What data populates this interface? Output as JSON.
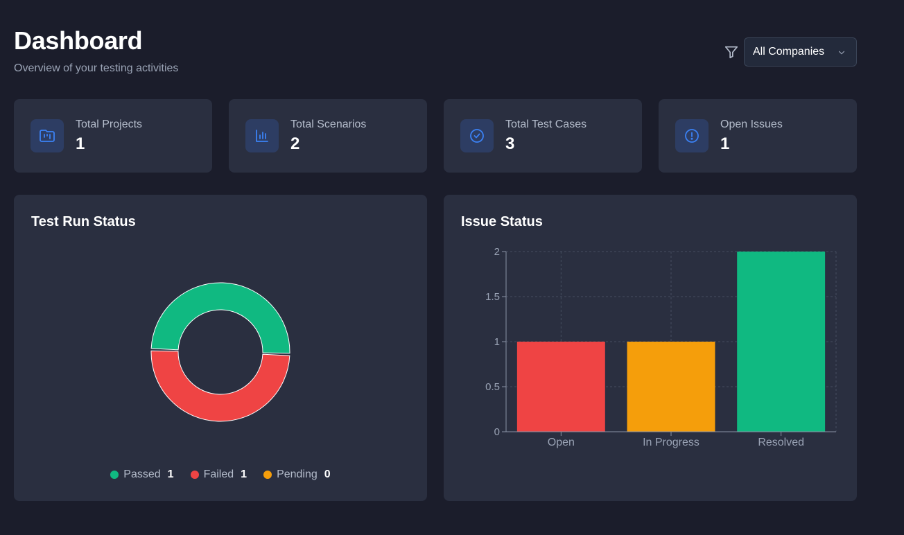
{
  "header": {
    "title": "Dashboard",
    "subtitle": "Overview of your testing activities",
    "filter_icon": "filter-icon",
    "company_select": {
      "selected": "All Companies"
    }
  },
  "stats": [
    {
      "label": "Total Projects",
      "value": "1",
      "icon": "folder-kanban-icon"
    },
    {
      "label": "Total Scenarios",
      "value": "2",
      "icon": "bar-chart-icon"
    },
    {
      "label": "Total Test Cases",
      "value": "3",
      "icon": "check-circle-icon"
    },
    {
      "label": "Open Issues",
      "value": "1",
      "icon": "alert-circle-icon"
    }
  ],
  "test_run_panel": {
    "title": "Test Run Status",
    "legend": [
      {
        "label": "Passed",
        "value": "1",
        "color": "#10b981"
      },
      {
        "label": "Failed",
        "value": "1",
        "color": "#ef4444"
      },
      {
        "label": "Pending",
        "value": "0",
        "color": "#f59e0b"
      }
    ]
  },
  "issue_panel": {
    "title": "Issue Status"
  },
  "colors": {
    "accent": "#3b82f6",
    "passed": "#10b981",
    "failed": "#ef4444",
    "pending": "#f59e0b"
  },
  "chart_data": [
    {
      "type": "pie",
      "title": "Test Run Status",
      "categories": [
        "Passed",
        "Failed",
        "Pending"
      ],
      "values": [
        1,
        1,
        0
      ],
      "colors": [
        "#10b981",
        "#ef4444",
        "#f59e0b"
      ]
    },
    {
      "type": "bar",
      "title": "Issue Status",
      "categories": [
        "Open",
        "In Progress",
        "Resolved"
      ],
      "values": [
        1,
        1,
        2
      ],
      "colors": [
        "#ef4444",
        "#f59e0b",
        "#10b981"
      ],
      "ylim": [
        0,
        2
      ],
      "yticks": [
        "0",
        "0.5",
        "1",
        "1.5",
        "2"
      ],
      "grid": true
    }
  ]
}
